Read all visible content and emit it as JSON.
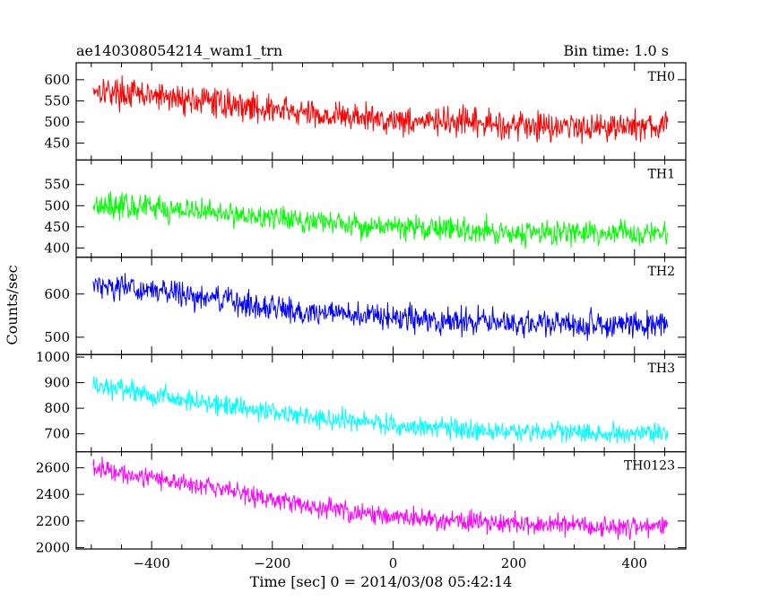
{
  "chart_data": {
    "type": "line",
    "title": "ae140308054214_wam1_trn",
    "bin_time_label": "Bin time: 1.0 s",
    "xlabel": "Time [sec] 0 = 2014/03/08 05:42:14",
    "ylabel": "Counts/sec",
    "xlim": [
      -525,
      485
    ],
    "x_range": [
      -497,
      455
    ],
    "x_step": 1,
    "x_ticks": [
      -400,
      -200,
      0,
      200,
      400
    ],
    "x_tick_labels": [
      "−400",
      "−200",
      "0",
      "200",
      "400"
    ],
    "panels": [
      {
        "name": "TH0",
        "color": "#ff0000",
        "ylim": [
          410,
          640
        ],
        "y_ticks": [
          450,
          500,
          550,
          600
        ],
        "trend": {
          "x": [
            -497,
            -450,
            -300,
            -150,
            0,
            150,
            300,
            455
          ],
          "y": [
            580,
            568,
            548,
            520,
            505,
            495,
            490,
            490
          ]
        },
        "noise_amplitude": 25
      },
      {
        "name": "TH1",
        "color": "#00ff00",
        "ylim": [
          378,
          608
        ],
        "y_ticks": [
          400,
          450,
          500,
          550
        ],
        "trend": {
          "x": [
            -497,
            -450,
            -300,
            -150,
            0,
            150,
            300,
            455
          ],
          "y": [
            505,
            500,
            485,
            465,
            450,
            440,
            435,
            435
          ]
        },
        "noise_amplitude": 22
      },
      {
        "name": "TH2",
        "color": "#0000ff",
        "ylim": [
          460,
          685
        ],
        "y_ticks": [
          500,
          600
        ],
        "trend": {
          "x": [
            -497,
            -450,
            -300,
            -150,
            0,
            150,
            300,
            455
          ],
          "y": [
            625,
            615,
            590,
            560,
            545,
            535,
            530,
            530
          ]
        },
        "noise_amplitude": 22
      },
      {
        "name": "TH3",
        "color": "#00ffff",
        "ylim": [
          630,
          1010
        ],
        "y_ticks": [
          700,
          800,
          900,
          1000
        ],
        "trend": {
          "x": [
            -497,
            -450,
            -300,
            -150,
            0,
            150,
            300,
            455
          ],
          "y": [
            890,
            870,
            820,
            770,
            735,
            715,
            705,
            705
          ]
        },
        "noise_amplitude": 30
      },
      {
        "name": "TH0123",
        "color": "#ff00ff",
        "ylim": [
          1990,
          2720
        ],
        "y_ticks": [
          2000,
          2200,
          2400,
          2600
        ],
        "trend": {
          "x": [
            -497,
            -450,
            -300,
            -150,
            0,
            150,
            300,
            455
          ],
          "y": [
            2600,
            2570,
            2450,
            2320,
            2230,
            2190,
            2160,
            2160
          ]
        },
        "noise_amplitude": 55
      }
    ]
  }
}
